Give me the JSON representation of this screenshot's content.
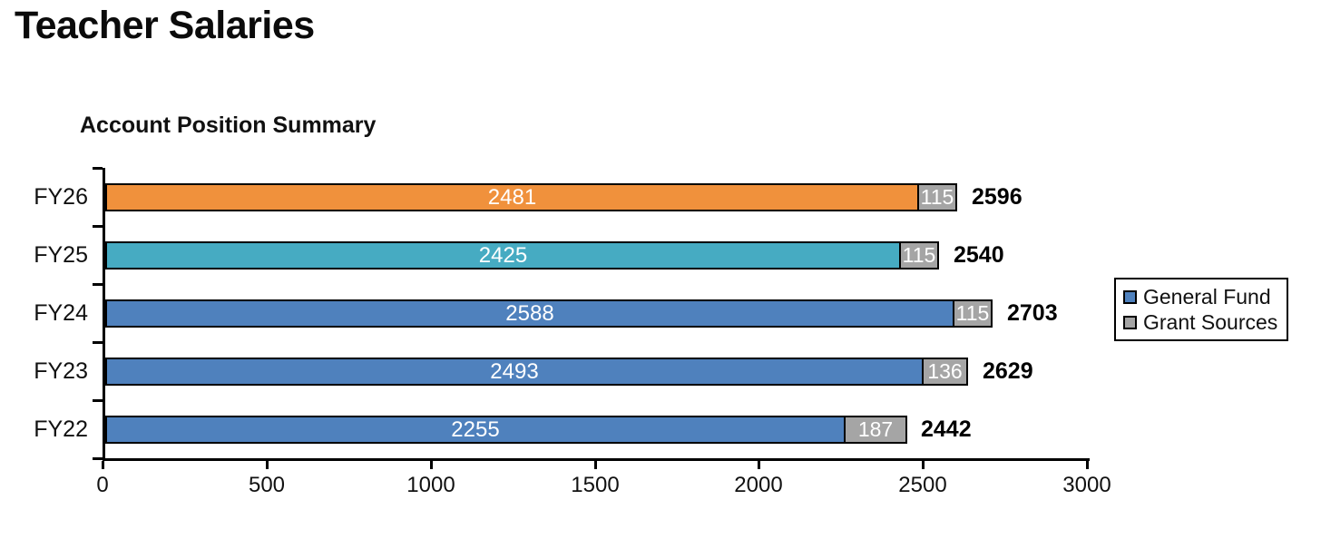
{
  "page_title": "Teacher Salaries",
  "chart_data": {
    "type": "bar",
    "orientation": "horizontal",
    "stacked": true,
    "title": "Account Position Summary",
    "xlabel": "",
    "ylabel": "",
    "grid": false,
    "xlim": [
      0,
      3000
    ],
    "x_ticks": [
      0,
      500,
      1000,
      1500,
      2000,
      2500,
      3000
    ],
    "categories": [
      "FY26",
      "FY25",
      "FY24",
      "FY23",
      "FY22"
    ],
    "series": [
      {
        "name": "General Fund",
        "values": [
          2481,
          2425,
          2588,
          2493,
          2255
        ],
        "colors": [
          "#F0913C",
          "#46ABC2",
          "#4F81BD",
          "#4F81BD",
          "#4F81BD"
        ]
      },
      {
        "name": "Grant Sources",
        "values": [
          115,
          115,
          115,
          136,
          187
        ],
        "colors": [
          "#A5A5A5",
          "#A5A5A5",
          "#A5A5A5",
          "#A5A5A5",
          "#A5A5A5"
        ]
      }
    ],
    "totals": [
      2596,
      2540,
      2703,
      2629,
      2442
    ],
    "bar_label_color": "#FFFFFF",
    "legend": {
      "position": "right",
      "entries": [
        {
          "label": "General Fund",
          "color": "#4F81BD"
        },
        {
          "label": "Grant Sources",
          "color": "#A5A5A5"
        }
      ]
    }
  },
  "colors": {
    "axis": "#000000",
    "bar_border": "#000000",
    "text": "#111111",
    "background": "#FFFFFF"
  }
}
